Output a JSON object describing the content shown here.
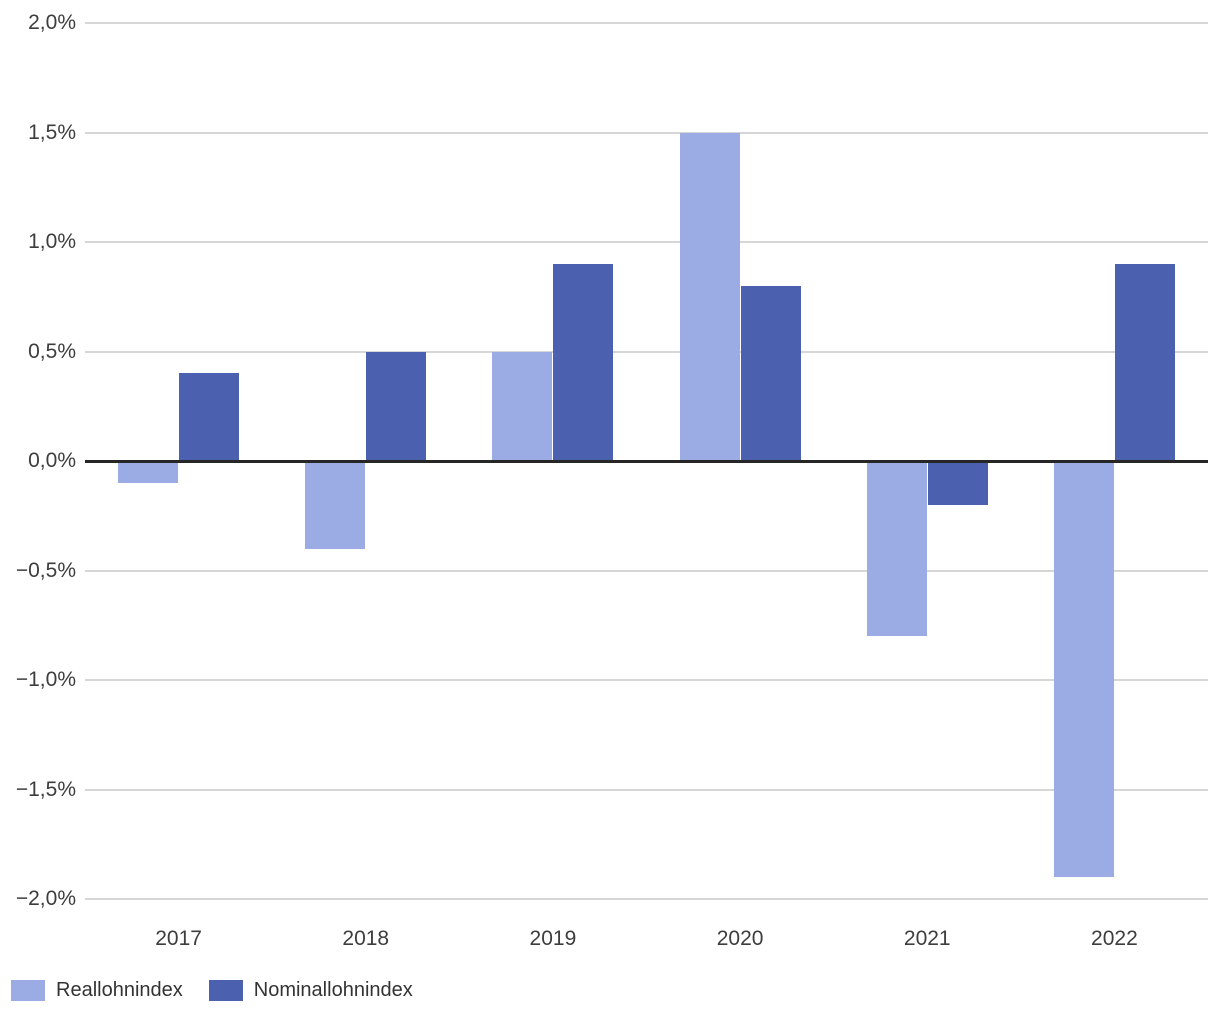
{
  "chart_data": {
    "type": "bar",
    "title": "",
    "xlabel": "",
    "ylabel": "",
    "value_unit": "%",
    "number_format": "german-decimal-comma",
    "categories": [
      "2017",
      "2018",
      "2019",
      "2020",
      "2021",
      "2022"
    ],
    "series": [
      {
        "name": "Reallohnindex",
        "color": "#9babe4",
        "values": [
          -0.1,
          -0.4,
          0.5,
          1.5,
          -0.8,
          -1.9
        ]
      },
      {
        "name": "Nominallohnindex",
        "color": "#4b61b0",
        "values": [
          0.4,
          0.5,
          0.9,
          0.8,
          -0.2,
          0.9
        ]
      }
    ],
    "y_ticks": [
      {
        "label": "2,0%",
        "value": 2.0
      },
      {
        "label": "1,5%",
        "value": 1.5
      },
      {
        "label": "1,0%",
        "value": 1.0
      },
      {
        "label": "0,5%",
        "value": 0.5
      },
      {
        "label": "0,0%",
        "value": 0.0
      },
      {
        "label": "−0,5%",
        "value": -0.5
      },
      {
        "label": "−1,0%",
        "value": -1.0
      },
      {
        "label": "−1,5%",
        "value": -1.5
      },
      {
        "label": "−2,0%",
        "value": -2.0
      }
    ],
    "ylim": [
      -2.0,
      2.0
    ],
    "grid": true,
    "zero_line": true,
    "legend_position": "bottom-left",
    "colors": {
      "gridline": "#d6d6d6",
      "zero_line": "#262626",
      "tick_text": "#3d3d3d",
      "legend_text": "#333333"
    }
  }
}
